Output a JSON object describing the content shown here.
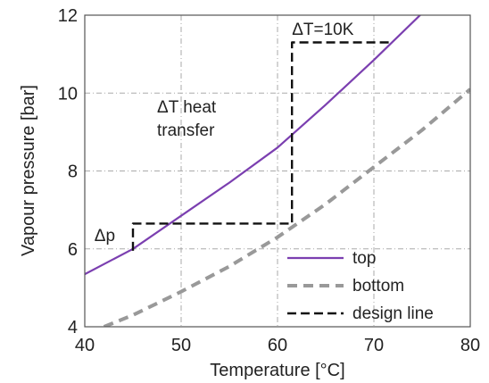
{
  "chart_data": {
    "type": "line",
    "title": "",
    "xlabel": "Temperature [°C]",
    "ylabel": "Vapour pressure [bar]",
    "xlim": [
      40,
      80
    ],
    "ylim": [
      4,
      12
    ],
    "xticks": [
      40,
      50,
      60,
      70,
      80
    ],
    "yticks": [
      4,
      6,
      8,
      10,
      12
    ],
    "grid": true,
    "legend_position": "bottom-right",
    "series": [
      {
        "name": "top",
        "style": "solid",
        "color": "#7b3fb0",
        "x": [
          40,
          45,
          50,
          55,
          60,
          65,
          70,
          75
        ],
        "y": [
          5.35,
          6.0,
          6.85,
          7.7,
          8.6,
          9.7,
          10.85,
          12.05
        ]
      },
      {
        "name": "bottom",
        "style": "dashed",
        "color": "#999999",
        "x": [
          42,
          45,
          50,
          55,
          60,
          65,
          70,
          75,
          80
        ],
        "y": [
          4.0,
          4.3,
          4.9,
          5.55,
          6.3,
          7.15,
          8.1,
          9.05,
          10.1
        ]
      },
      {
        "name": "design line",
        "style": "dashed",
        "color": "#111111",
        "x": [
          45,
          45,
          61.5,
          61.5,
          72
        ],
        "y": [
          5.95,
          6.65,
          6.65,
          11.3,
          11.3
        ]
      }
    ],
    "annotations": [
      {
        "text": "ΔT=10K",
        "x": 61.5,
        "y": 11.5
      },
      {
        "text": "ΔT heat",
        "x": 47.5,
        "y": 9.5
      },
      {
        "text": "transfer",
        "x": 47.5,
        "y": 8.9
      },
      {
        "text": "Δp",
        "x": 41,
        "y": 6.2
      }
    ]
  }
}
